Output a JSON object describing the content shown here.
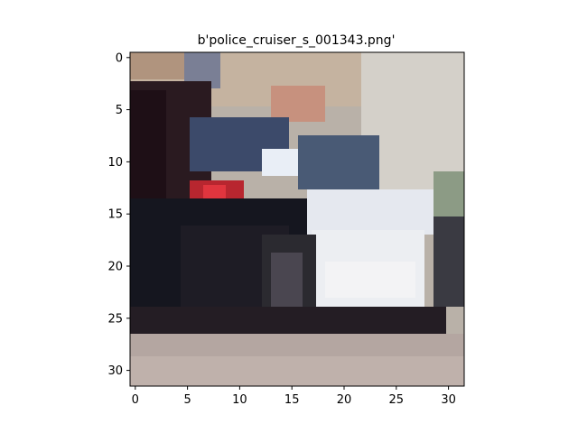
{
  "figure": {
    "title": "b'police_cruiser_s_001343.png'"
  },
  "image": {
    "description_name": "police-cruiser-thumbnail",
    "grid_size": [
      32,
      32
    ]
  },
  "axes": {
    "x_ticks": [
      "0",
      "5",
      "10",
      "15",
      "20",
      "25",
      "30"
    ],
    "y_ticks": [
      "0",
      "5",
      "10",
      "15",
      "20",
      "25",
      "30"
    ]
  }
}
